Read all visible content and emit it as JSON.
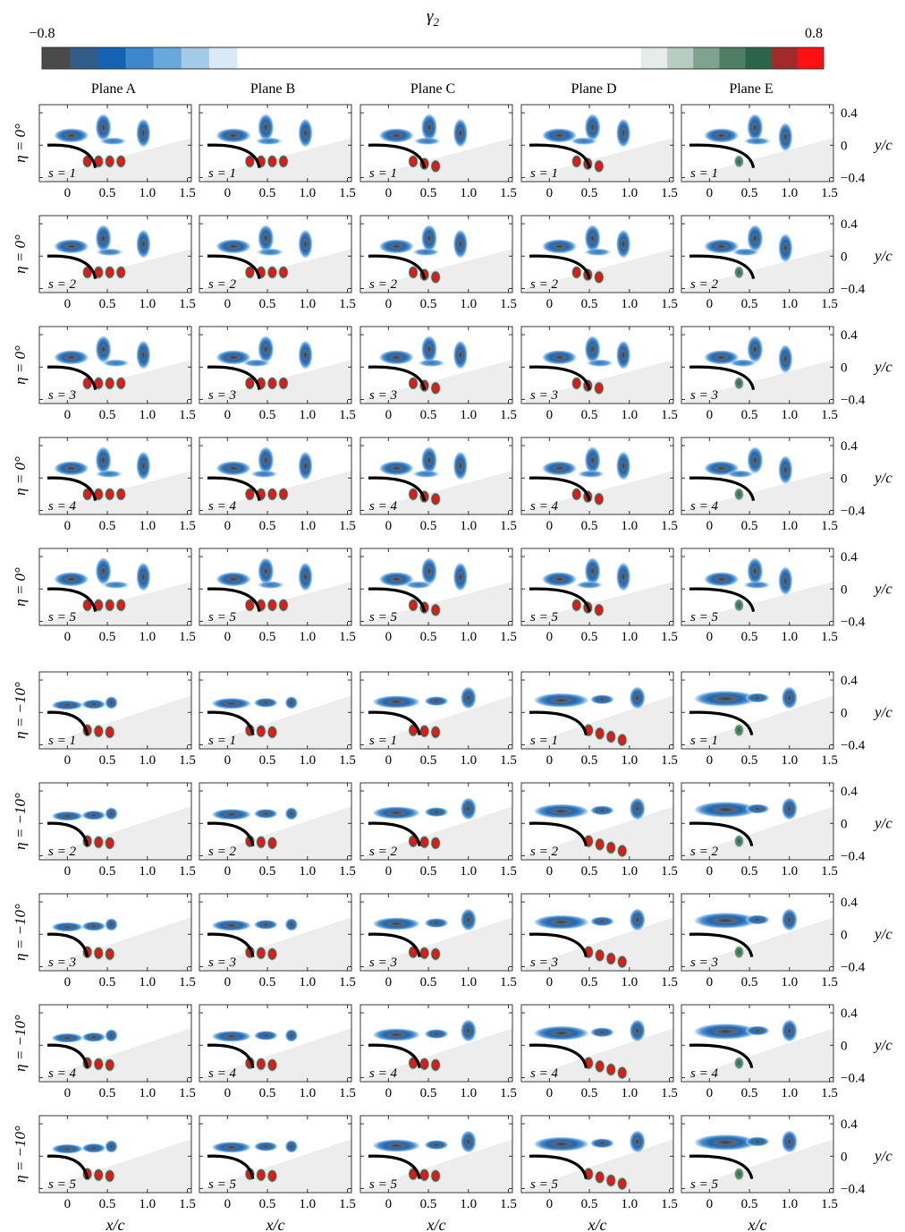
{
  "colorbar": {
    "title": "γ2",
    "title_base": "γ",
    "title_sub": "2",
    "min_label": "−0.8",
    "max_label": "0.8",
    "min": -0.8,
    "max": 0.8,
    "negative_colors": [
      "#4a4a4a",
      "#315c89",
      "#1662b2",
      "#3d86cc",
      "#6aa7da",
      "#a3cbe9",
      "#d9e9f5"
    ],
    "positive_colors": [
      "#e6ece9",
      "#b8cdc2",
      "#7fa391",
      "#4c7f66",
      "#2b6548",
      "#a22a2a",
      "#ff1010"
    ]
  },
  "columns": [
    "Plane A",
    "Plane B",
    "Plane C",
    "Plane D",
    "Plane E"
  ],
  "groups": [
    {
      "label": "η = 0°",
      "rows": [
        {
          "s": "s = 1"
        },
        {
          "s": "s = 2"
        },
        {
          "s": "s = 3"
        },
        {
          "s": "s = 4"
        },
        {
          "s": "s = 5"
        }
      ]
    },
    {
      "label": "η = −10°",
      "rows": [
        {
          "s": "s = 1"
        },
        {
          "s": "s = 2"
        },
        {
          "s": "s = 3"
        },
        {
          "s": "s = 4"
        },
        {
          "s": "s = 5"
        }
      ]
    }
  ],
  "x_axis": {
    "label": "x/c",
    "ticks": [
      "0",
      "0.5",
      "1.0",
      "1.5"
    ],
    "range": [
      -0.35,
      1.55
    ]
  },
  "y_axis": {
    "label": "y/c",
    "ticks": [
      "0.4",
      "0",
      "−0.4"
    ],
    "range": [
      -0.45,
      0.5
    ]
  },
  "colors": {
    "negative_core": "#4a4a4a",
    "negative_mid": "#1662b2",
    "negative_light": "#a3cbe9",
    "positive_core": "#ff1010",
    "positive_edge": "#2b6548",
    "surface": "#000000",
    "shadow": "#ededed"
  }
}
